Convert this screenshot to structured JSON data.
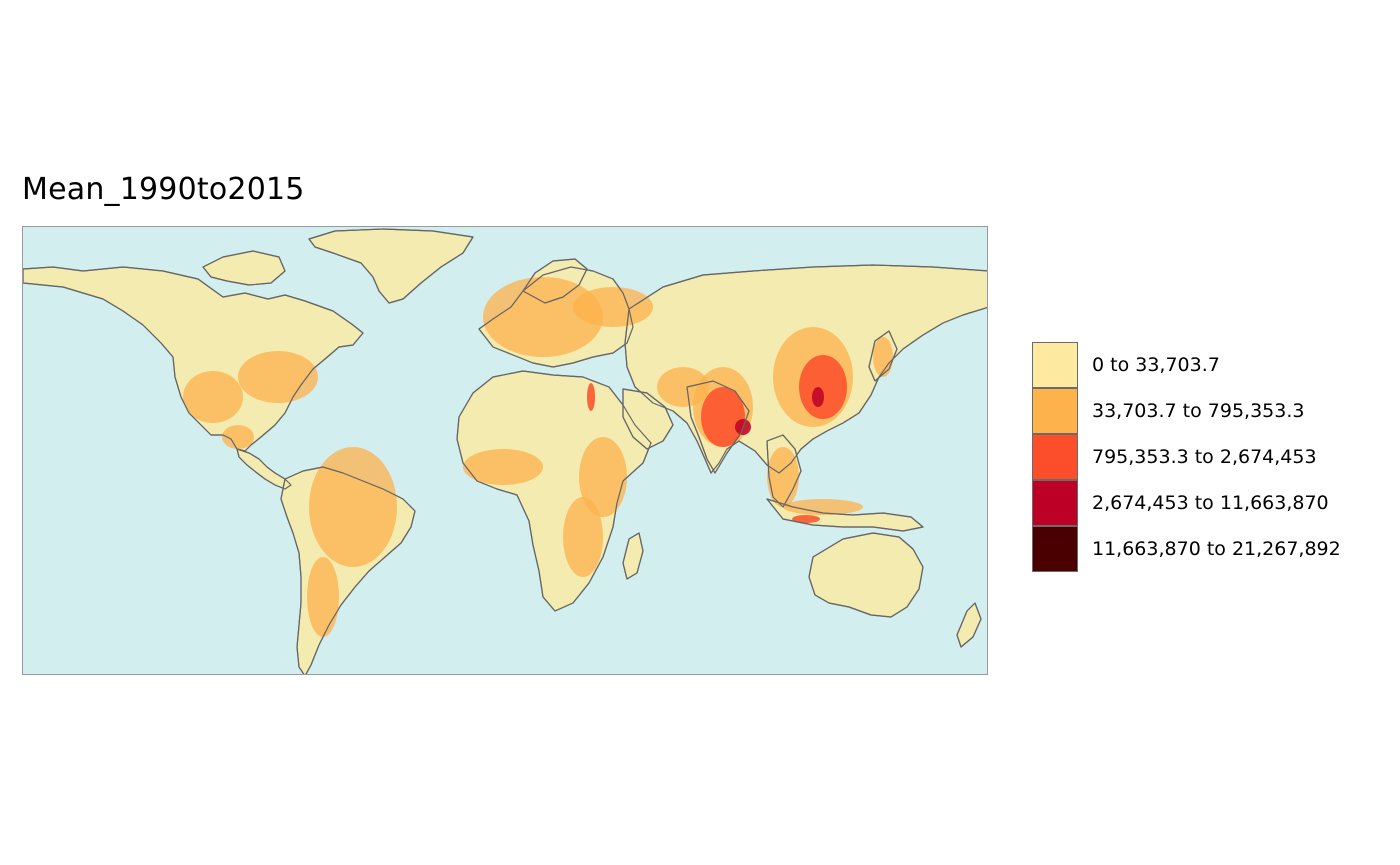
{
  "map": {
    "title": "Mean_1990to2015",
    "ocean_color": "#d3eeef",
    "land_color": "#f4ebb0",
    "border_color": "#666666"
  },
  "legend": {
    "items": [
      {
        "label": "0 to 33,703.7",
        "color": "#fde9a0"
      },
      {
        "label": "33,703.7 to 795,353.3",
        "color": "#fdb24c"
      },
      {
        "label": "795,353.3 to 2,674,453",
        "color": "#fc4e2a"
      },
      {
        "label": "2,674,453 to 11,663,870",
        "color": "#bd0026"
      },
      {
        "label": "11,663,870 to 21,267,892",
        "color": "#4a0000"
      }
    ]
  }
}
